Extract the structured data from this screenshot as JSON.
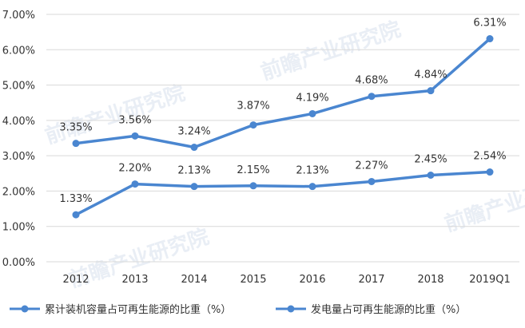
{
  "chart_data": {
    "type": "line",
    "categories": [
      "2012",
      "2013",
      "2014",
      "2015",
      "2016",
      "2017",
      "2018",
      "2019Q1"
    ],
    "series": [
      {
        "name": "累计装机容量占可再生能源的比重（%）",
        "values": [
          3.35,
          3.56,
          3.24,
          3.87,
          4.19,
          4.68,
          4.84,
          6.31
        ]
      },
      {
        "name": "发电量占可再生能源的比重（%）",
        "values": [
          1.33,
          2.2,
          2.13,
          2.15,
          2.13,
          2.27,
          2.45,
          2.54
        ]
      }
    ],
    "ylim": [
      0,
      7
    ],
    "yticks": [
      "0.00%",
      "1.00%",
      "2.00%",
      "3.00%",
      "4.00%",
      "5.00%",
      "6.00%",
      "7.00%"
    ],
    "data_labels": [
      [
        "3.35%",
        "3.56%",
        "3.24%",
        "3.87%",
        "4.19%",
        "4.68%",
        "4.84%",
        "6.31%"
      ],
      [
        "1.33%",
        "2.20%",
        "2.13%",
        "2.15%",
        "2.13%",
        "2.27%",
        "2.45%",
        "2.54%"
      ]
    ],
    "grid": true,
    "legend_position": "bottom",
    "colors": {
      "line": "#4a86d0",
      "grid": "#d9d9d9",
      "text": "#333333"
    },
    "watermark": "前瞻产业研究院"
  }
}
